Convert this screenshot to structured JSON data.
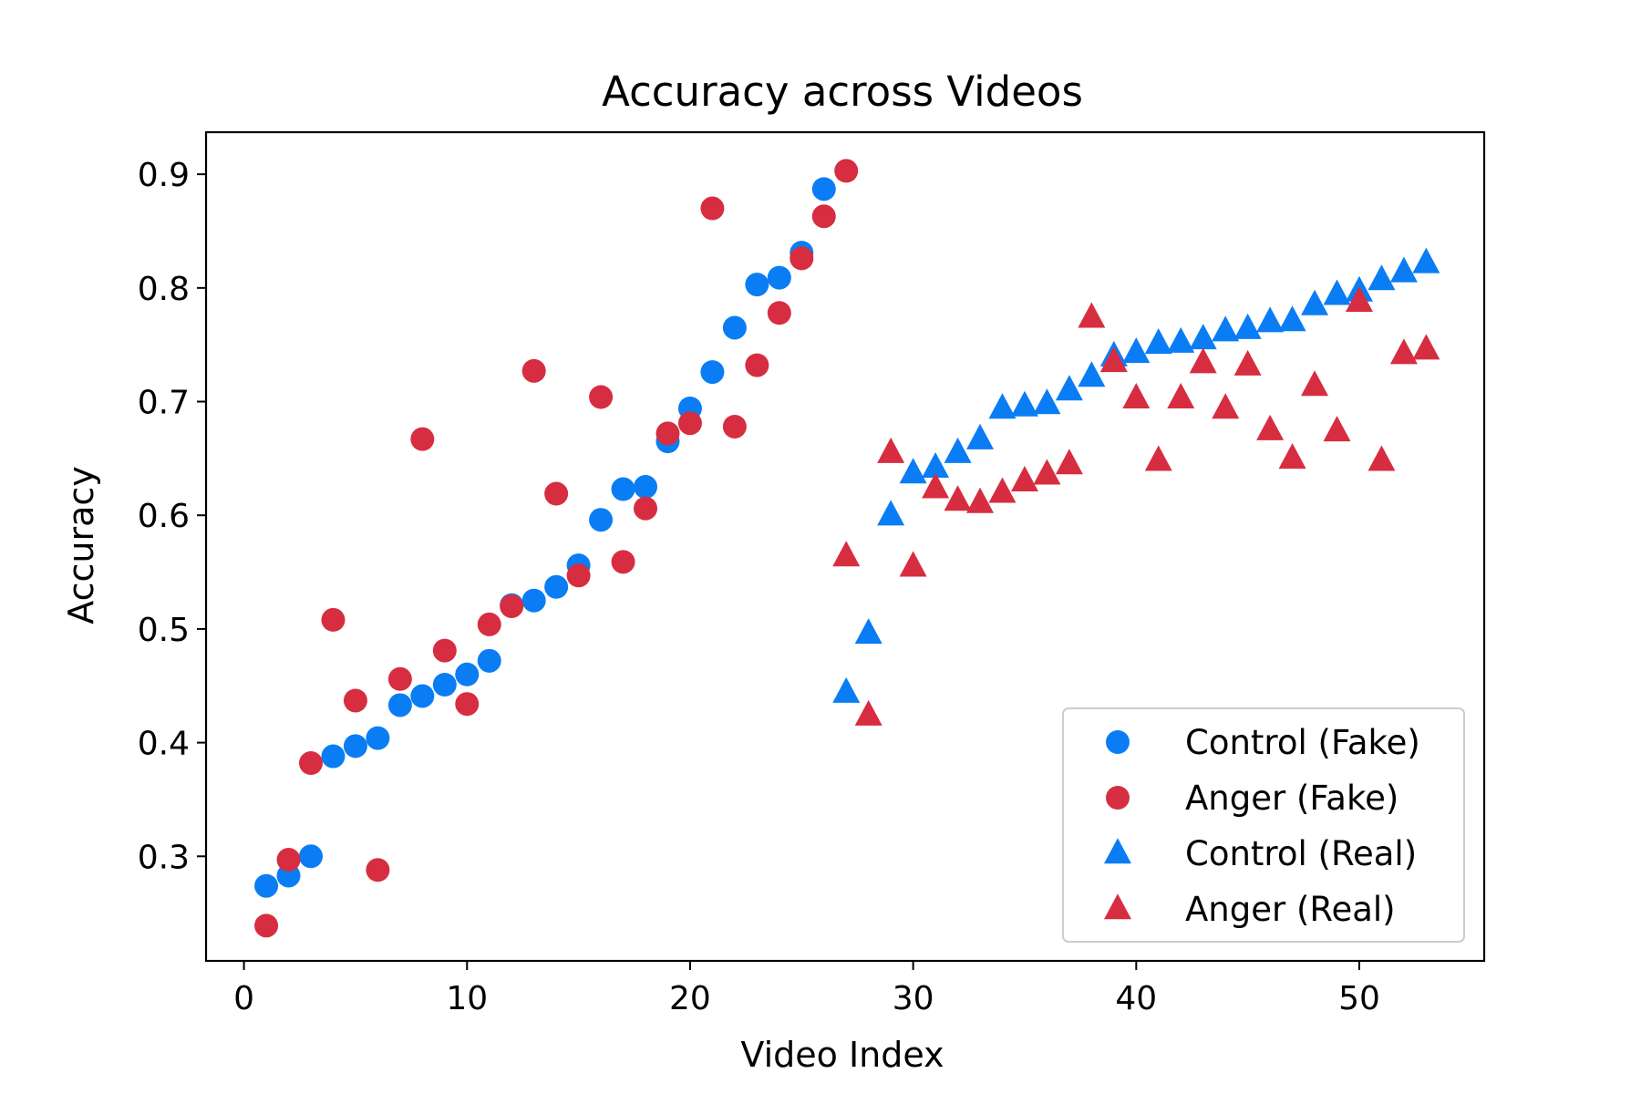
{
  "chart_data": {
    "type": "scatter",
    "title": "Accuracy across Videos",
    "xlabel": "Video Index",
    "ylabel": "Accuracy",
    "xlim": [
      -1.7,
      55.6
    ],
    "ylim": [
      0.208,
      0.937
    ],
    "xticks": [
      0,
      10,
      20,
      30,
      40,
      50
    ],
    "yticks": [
      0.3,
      0.4,
      0.5,
      0.6,
      0.7,
      0.8,
      0.9
    ],
    "grid": false,
    "legend_position": "lower-right",
    "series": [
      {
        "name": "Control (Fake)",
        "marker": "circle",
        "color": "#0a7df5",
        "x": [
          1,
          2,
          3,
          4,
          5,
          6,
          7,
          8,
          9,
          10,
          11,
          12,
          13,
          14,
          15,
          16,
          17,
          18,
          19,
          20,
          21,
          22,
          23,
          24,
          25,
          26
        ],
        "y": [
          0.274,
          0.283,
          0.3,
          0.388,
          0.397,
          0.404,
          0.433,
          0.441,
          0.451,
          0.46,
          0.472,
          0.521,
          0.525,
          0.537,
          0.556,
          0.596,
          0.623,
          0.625,
          0.665,
          0.694,
          0.726,
          0.765,
          0.803,
          0.809,
          0.831,
          0.887
        ]
      },
      {
        "name": "Anger (Fake)",
        "marker": "circle",
        "color": "#d72d40",
        "x": [
          1,
          2,
          3,
          4,
          5,
          6,
          7,
          8,
          9,
          10,
          11,
          12,
          13,
          14,
          15,
          16,
          17,
          18,
          19,
          20,
          21,
          22,
          23,
          24,
          25,
          26,
          27
        ],
        "y": [
          0.239,
          0.297,
          0.382,
          0.508,
          0.437,
          0.288,
          0.456,
          0.667,
          0.481,
          0.434,
          0.504,
          0.52,
          0.727,
          0.619,
          0.547,
          0.704,
          0.559,
          0.606,
          0.672,
          0.681,
          0.87,
          0.678,
          0.732,
          0.778,
          0.826,
          0.863,
          0.903
        ]
      },
      {
        "name": "Control (Real)",
        "marker": "triangle",
        "color": "#0a7df5",
        "x": [
          27,
          28,
          29,
          30,
          31,
          32,
          33,
          34,
          35,
          36,
          37,
          38,
          39,
          40,
          41,
          42,
          43,
          44,
          45,
          46,
          47,
          48,
          49,
          50,
          51,
          52,
          53
        ],
        "y": [
          0.444,
          0.496,
          0.6,
          0.637,
          0.642,
          0.655,
          0.667,
          0.694,
          0.696,
          0.698,
          0.71,
          0.722,
          0.74,
          0.743,
          0.751,
          0.752,
          0.755,
          0.762,
          0.764,
          0.77,
          0.771,
          0.785,
          0.794,
          0.797,
          0.807,
          0.814,
          0.822
        ]
      },
      {
        "name": "Anger (Real)",
        "marker": "triangle",
        "color": "#d72d40",
        "x": [
          27,
          28,
          29,
          30,
          31,
          32,
          33,
          34,
          35,
          36,
          37,
          38,
          39,
          40,
          41,
          42,
          43,
          44,
          45,
          46,
          47,
          48,
          49,
          50,
          51,
          52,
          53
        ],
        "y": [
          0.564,
          0.424,
          0.655,
          0.555,
          0.624,
          0.613,
          0.611,
          0.62,
          0.63,
          0.636,
          0.645,
          0.774,
          0.735,
          0.703,
          0.648,
          0.703,
          0.734,
          0.694,
          0.732,
          0.675,
          0.65,
          0.714,
          0.674,
          0.788,
          0.648,
          0.742,
          0.746
        ]
      }
    ]
  }
}
